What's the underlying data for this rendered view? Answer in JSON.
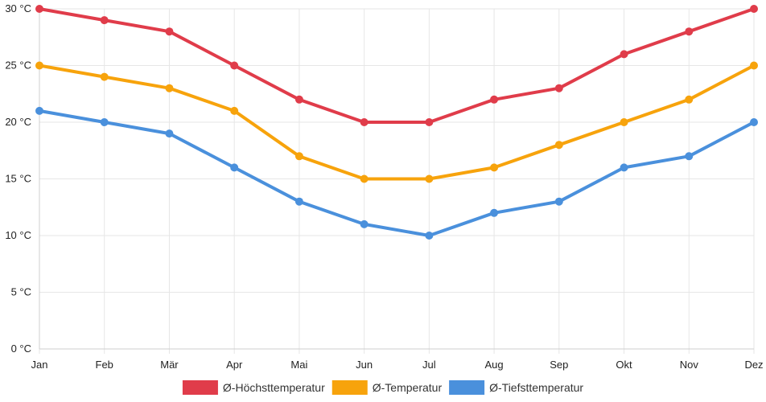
{
  "chart_data": {
    "type": "line",
    "title": "",
    "xlabel": "",
    "ylabel": "",
    "categories": [
      "Jan",
      "Feb",
      "Mär",
      "Apr",
      "Mai",
      "Jun",
      "Jul",
      "Aug",
      "Sep",
      "Okt",
      "Nov",
      "Dez"
    ],
    "ylim": [
      0,
      30
    ],
    "yticks": [
      0,
      5,
      10,
      15,
      20,
      25,
      30
    ],
    "y_unit": " °C",
    "grid": true,
    "legend_position": "bottom",
    "series": [
      {
        "name": "Ø-Höchsttemperatur",
        "color": "#e03c4a",
        "values": [
          30,
          29,
          28,
          25,
          22,
          20,
          20,
          22,
          23,
          26,
          28,
          30
        ]
      },
      {
        "name": "Ø-Temperatur",
        "color": "#f7a30c",
        "values": [
          25,
          24,
          23,
          21,
          17,
          15,
          15,
          16,
          18,
          20,
          22,
          25
        ]
      },
      {
        "name": "Ø-Tiefsttemperatur",
        "color": "#4a90dc",
        "values": [
          21,
          20,
          19,
          16,
          13,
          11,
          10,
          12,
          13,
          16,
          17,
          20
        ]
      }
    ]
  }
}
